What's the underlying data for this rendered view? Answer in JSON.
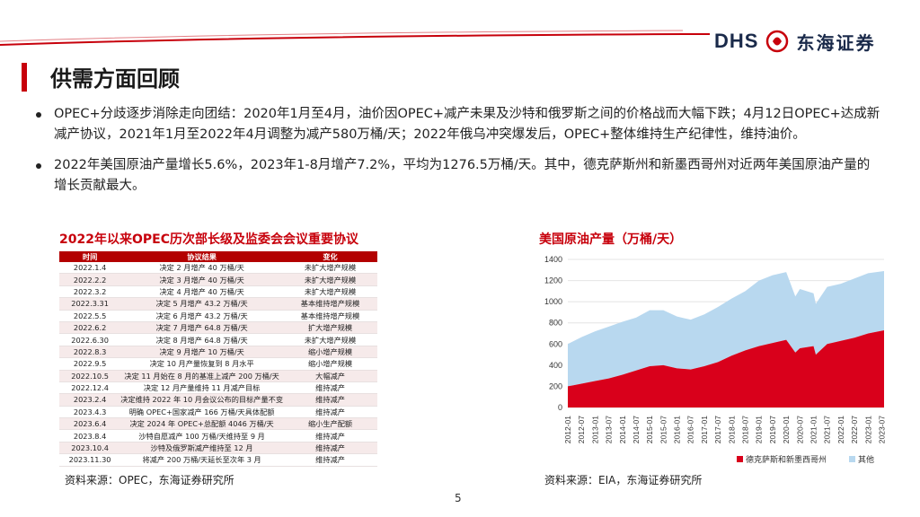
{
  "header": {
    "logo_text": "DHS",
    "logo_cn": "东海证券"
  },
  "title": "供需方面回顾",
  "bullets": [
    "OPEC+分歧逐步消除走向团结：2020年1月至4月，油价因OPEC+减产未果及沙特和俄罗斯之间的价格战而大幅下跌；4月12日OPEC+达成新减产协议，2021年1月至2022年4月调整为减产580万桶/天；2022年俄乌冲突爆发后，OPEC+整体维持生产纪律性，维持油价。",
    "2022年美国原油产量增长5.6%，2023年1-8月增产7.2%，平均为1276.5万桶/天。其中，德克萨斯州和新墨西哥州对近两年美国原油产量的增长贡献最大。"
  ],
  "table": {
    "title": "2022年以来OPEC历次部长级及监委会会议重要协议",
    "headers": [
      "时间",
      "协议结果",
      "变化"
    ],
    "rows": [
      [
        "2022.1.4",
        "决定 2 月增产 40 万桶/天",
        "未扩大增产规模"
      ],
      [
        "2022.2.2",
        "决定 3 月增产 40 万桶/天",
        "未扩大增产规模"
      ],
      [
        "2022.3.2",
        "决定 4 月增产 40 万桶/天",
        "未扩大增产规模"
      ],
      [
        "2022.3.31",
        "决定 5 月增产 43.2 万桶/天",
        "基本维持增产规模"
      ],
      [
        "2022.5.5",
        "决定 6 月增产 43.2 万桶/天",
        "基本维持增产规模"
      ],
      [
        "2022.6.2",
        "决定 7 月增产 64.8 万桶/天",
        "扩大增产规模"
      ],
      [
        "2022.6.30",
        "决定 8 月增产 64.8 万桶/天",
        "未扩大增产规模"
      ],
      [
        "2022.8.3",
        "决定 9 月增产 10 万桶/天",
        "缩小增产规模"
      ],
      [
        "2022.9.5",
        "决定 10 月产量恢复到 8 月水平",
        "缩小增产规模"
      ],
      [
        "2022.10.5",
        "决定 11 月始在 8 月的基准上减产 200 万桶/天",
        "大幅减产"
      ],
      [
        "2022.12.4",
        "决定 12 月产量维持 11 月减产目标",
        "维持减产"
      ],
      [
        "2023.2.4",
        "决定维持 2022 年 10 月会议公布的目标产量不变",
        "维持减产"
      ],
      [
        "2023.4.3",
        "明确 OPEC+国家减产 166 万桶/天具体配额",
        "维持减产"
      ],
      [
        "2023.6.4",
        "决定 2024 年 OPEC+总配额 4046 万桶/天",
        "缩小生产配额"
      ],
      [
        "2023.8.4",
        "沙特自愿减产 100 万桶/天维持至 9 月",
        "维持减产"
      ],
      [
        "2023.10.4",
        "沙特及俄罗斯减产维持至 12 月",
        "维持减产"
      ],
      [
        "2023.11.30",
        "将减产 200 万桶/天延长至次年 3 月",
        "维持减产"
      ]
    ],
    "source": "资料来源：OPEC，东海证券研究所"
  },
  "chart_data": {
    "type": "area",
    "title": "美国原油产量（万桶/天）",
    "stacked": true,
    "ylim": [
      0,
      1400
    ],
    "yticks": [
      0,
      200,
      400,
      600,
      800,
      1000,
      1200,
      1400
    ],
    "xtick_labels": [
      "2012-01",
      "2012-07",
      "2013-01",
      "2013-07",
      "2014-01",
      "2014-07",
      "2015-01",
      "2015-07",
      "2016-01",
      "2016-07",
      "2017-01",
      "2017-07",
      "2018-01",
      "2018-07",
      "2019-01",
      "2019-07",
      "2020-01",
      "2020-07",
      "2021-01",
      "2021-07",
      "2022-01",
      "2022-07",
      "2023-01",
      "2023-07"
    ],
    "x": [
      "2012-01",
      "2012-07",
      "2013-01",
      "2013-07",
      "2014-01",
      "2014-07",
      "2015-01",
      "2015-07",
      "2016-01",
      "2016-07",
      "2017-01",
      "2017-07",
      "2018-01",
      "2018-07",
      "2019-01",
      "2019-07",
      "2020-01",
      "2020-05",
      "2020-07",
      "2021-01",
      "2021-02",
      "2021-07",
      "2022-01",
      "2022-07",
      "2023-01",
      "2023-08"
    ],
    "series": [
      {
        "name": "德克萨斯和新墨西哥州",
        "color": "#d9001b",
        "values": [
          200,
          225,
          250,
          275,
          310,
          350,
          390,
          400,
          370,
          360,
          390,
          430,
          490,
          540,
          580,
          610,
          640,
          520,
          560,
          580,
          500,
          600,
          630,
          660,
          700,
          730
        ]
      },
      {
        "name": "其他",
        "color": "#b8d8ef",
        "values": [
          400,
          440,
          470,
          490,
          500,
          500,
          530,
          520,
          490,
          470,
          490,
          520,
          540,
          560,
          620,
          640,
          640,
          530,
          560,
          500,
          480,
          540,
          540,
          560,
          570,
          560
        ]
      }
    ],
    "legend_position": "bottom-right",
    "source": "资料来源：EIA，东海证券研究所"
  },
  "page_number": "5",
  "colors": {
    "accent": "#c7000b",
    "navy": "#1a2a4a"
  }
}
